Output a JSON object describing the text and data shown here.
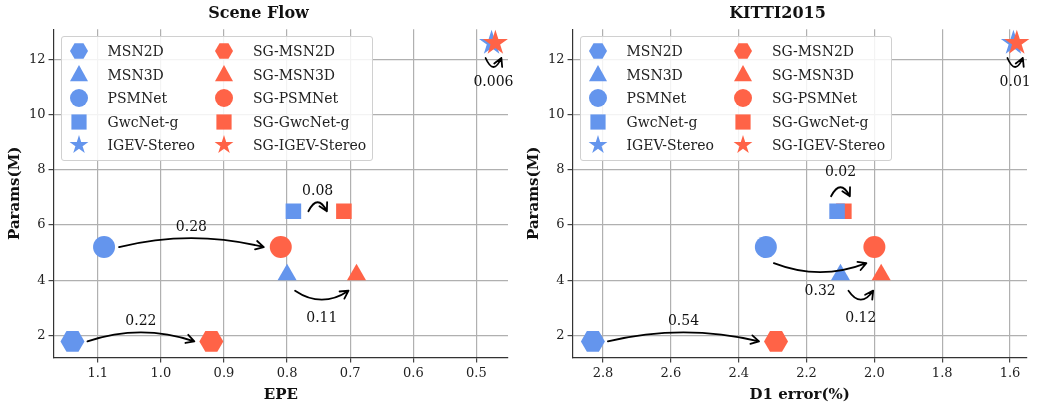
{
  "chart_data": [
    {
      "type": "scatter",
      "title": "Scene Flow",
      "xlabel": "EPE",
      "ylabel": "Params(M)",
      "xlim": [
        1.17,
        0.45
      ],
      "ylim": [
        1.2,
        13.1
      ],
      "xticks": [
        1.1,
        {
          "value": 1,
          "label": "1.0"
        },
        0.9,
        0.8,
        0.7,
        0.6,
        0.5
      ],
      "yticks": [
        2,
        4,
        6,
        8,
        10,
        12
      ],
      "grid": true,
      "legend": "top left",
      "series": [
        {
          "name": "MSN2D",
          "color": "#6495ed",
          "x": [
            1.14
          ],
          "values": [
            1.78
          ]
        },
        {
          "name": "MSN3D",
          "color": "#6495ed",
          "marker": "triangle",
          "x": [
            0.8
          ],
          "values": [
            4.2
          ]
        },
        {
          "name": "PSMNet",
          "color": "#6495ed",
          "marker": "circle",
          "x": [
            1.09
          ],
          "values": [
            5.2
          ]
        },
        {
          "name": "GwcNet-g",
          "color": "#6495ed",
          "marker": "square",
          "x": [
            0.79
          ],
          "values": [
            6.5
          ]
        },
        {
          "name": "IGEV-Stereo",
          "color": "#6495ed",
          "marker": "star",
          "x": [
            0.476
          ],
          "values": [
            12.6
          ]
        },
        {
          "name": "SG-MSN2D",
          "color": "#ff6347",
          "x": [
            0.92
          ],
          "values": [
            1.78
          ]
        },
        {
          "name": "SG-MSN3D",
          "color": "#ff6347",
          "marker": "triangle",
          "x": [
            0.69
          ],
          "values": [
            4.2
          ]
        },
        {
          "name": "SG-PSMNet",
          "color": "#ff6347",
          "marker": "circle",
          "x": [
            0.81
          ],
          "values": [
            5.2
          ]
        },
        {
          "name": "SG-GwcNet-g",
          "color": "#ff6347",
          "marker": "square",
          "x": [
            0.71
          ],
          "values": [
            6.5
          ]
        },
        {
          "name": "SG-IGEV-Stereo",
          "color": "#ff6347",
          "marker": "star",
          "x": [
            0.47
          ],
          "values": [
            12.6
          ]
        }
      ],
      "annotations": [
        "0.22",
        "0.11",
        "0.28",
        "0.08",
        "0.006"
      ]
    },
    {
      "type": "scatter",
      "title": "KITTI2015",
      "xlabel": "D1 error(%)",
      "ylabel": "Params(M)",
      "xlim": [
        2.89,
        1.55
      ],
      "ylim": [
        1.2,
        13.1
      ],
      "xticks": [
        2.8,
        2.6,
        2.4,
        2.2,
        {
          "value": 2,
          "label": "2.0"
        },
        1.8,
        1.6
      ],
      "yticks": [
        2,
        4,
        6,
        8,
        10,
        12
      ],
      "grid": true,
      "legend": "top left",
      "series": [
        {
          "name": "MSN2D",
          "color": "#6495ed",
          "x": [
            2.83
          ],
          "values": [
            1.78
          ]
        },
        {
          "name": "MSN3D",
          "color": "#6495ed",
          "marker": "triangle",
          "x": [
            2.1
          ],
          "values": [
            4.2
          ]
        },
        {
          "name": "PSMNet",
          "color": "#6495ed",
          "marker": "circle",
          "x": [
            2.32
          ],
          "values": [
            5.2
          ]
        },
        {
          "name": "GwcNet-g",
          "color": "#6495ed",
          "marker": "square",
          "x": [
            2.11
          ],
          "values": [
            6.5
          ]
        },
        {
          "name": "IGEV-Stereo",
          "color": "#6495ed",
          "marker": "star",
          "x": [
            1.59
          ],
          "values": [
            12.6
          ]
        },
        {
          "name": "SG-MSN2D",
          "color": "#ff6347",
          "x": [
            2.29
          ],
          "values": [
            1.78
          ]
        },
        {
          "name": "SG-MSN3D",
          "color": "#ff6347",
          "marker": "triangle",
          "x": [
            1.98
          ],
          "values": [
            4.2
          ]
        },
        {
          "name": "SG-PSMNet",
          "color": "#ff6347",
          "marker": "circle",
          "x": [
            2.0
          ],
          "values": [
            5.2
          ]
        },
        {
          "name": "SG-GwcNet-g",
          "color": "#ff6347",
          "marker": "square",
          "x": [
            2.09
          ],
          "values": [
            6.5
          ]
        },
        {
          "name": "SG-IGEV-Stereo",
          "color": "#ff6347",
          "marker": "star",
          "x": [
            1.58
          ],
          "values": [
            12.6
          ]
        }
      ],
      "annotations": [
        "0.54",
        "0.12",
        "0.32",
        "0.02",
        "0.01"
      ]
    }
  ]
}
